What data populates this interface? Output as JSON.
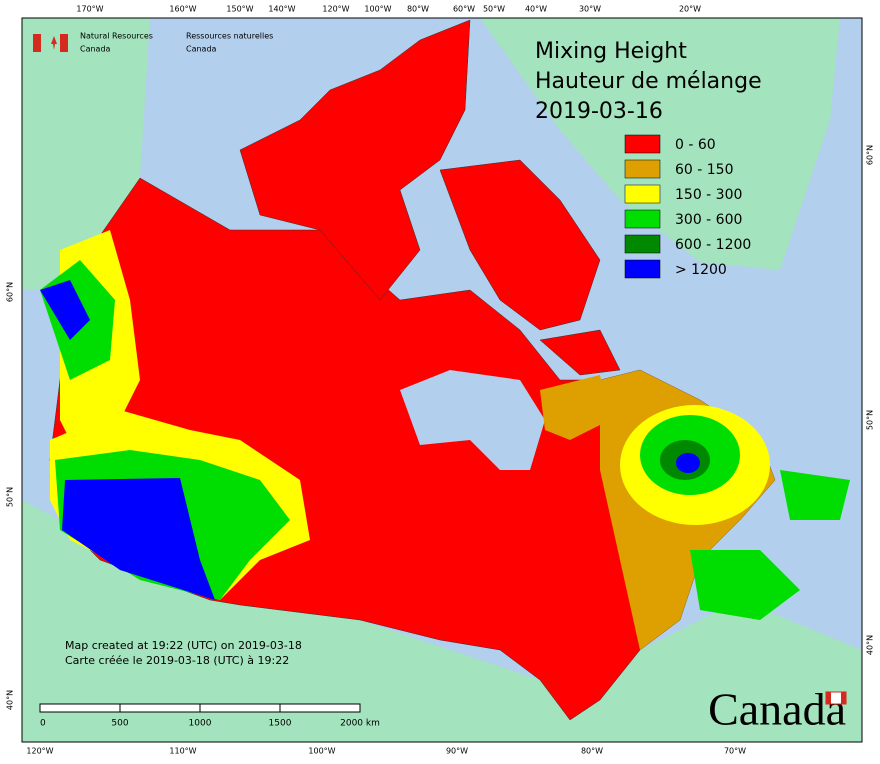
{
  "header": {
    "agency_en": [
      "Natural Resources",
      "Canada"
    ],
    "agency_fr": [
      "Ressources naturelles",
      "Canada"
    ]
  },
  "title": [
    "Mixing Height",
    "Hauteur de mélange",
    "2019-03-16"
  ],
  "legend": [
    {
      "label": "0 - 60",
      "color": "#ff0000"
    },
    {
      "label": "60 - 150",
      "color": "#dda000"
    },
    {
      "label": "150 - 300",
      "color": "#ffff00"
    },
    {
      "label": "300 - 600",
      "color": "#00dd00"
    },
    {
      "label": "600 - 1200",
      "color": "#008800"
    },
    {
      "label": "> 1200",
      "color": "#0000ff"
    }
  ],
  "top_labels": [
    "170°W",
    "160°W",
    "150°W",
    "140°W",
    "120°W",
    "100°W",
    "80°W",
    "60°W",
    "50°W",
    "40°W",
    "30°W",
    "20°W"
  ],
  "bottom_labels": [
    "120°W",
    "110°W",
    "100°W",
    "90°W",
    "80°W",
    "70°W"
  ],
  "left_labels": [
    "60°N",
    "50°N",
    "40°N"
  ],
  "right_labels": [
    "60°N",
    "50°N",
    "40°N"
  ],
  "notes": [
    "Map created at 19:22 (UTC) on 2019-03-18",
    "Carte créée le 2019-03-18 (UTC) à 19:22"
  ],
  "scale_labels": [
    "0",
    "500",
    "1000",
    "1500",
    "2000 km"
  ],
  "wordmark": "Canada"
}
